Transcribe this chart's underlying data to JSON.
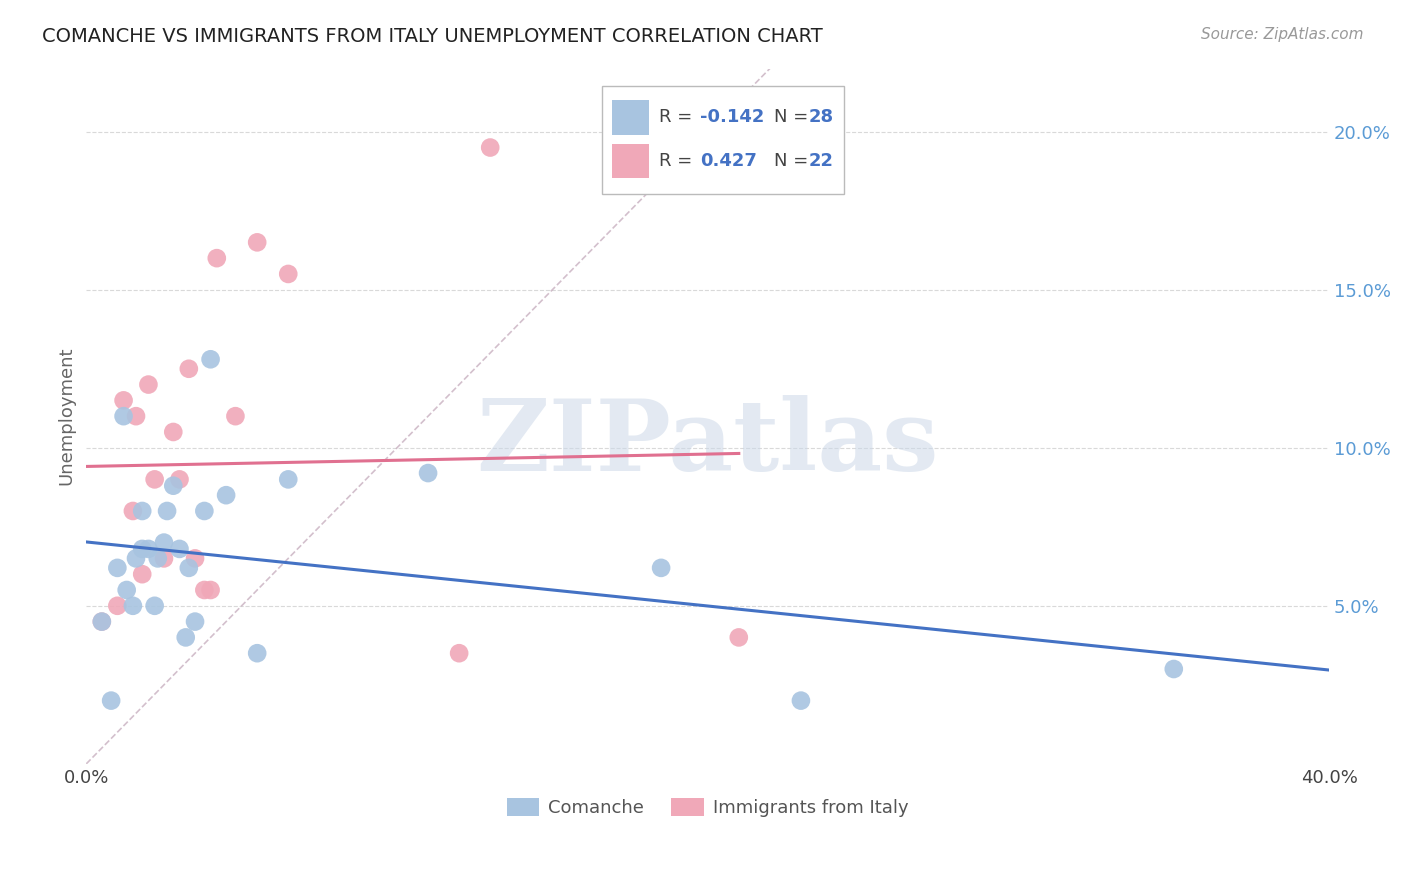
{
  "title": "COMANCHE VS IMMIGRANTS FROM ITALY UNEMPLOYMENT CORRELATION CHART",
  "source": "Source: ZipAtlas.com",
  "ylabel": "Unemployment",
  "y_ticks": [
    0.05,
    0.1,
    0.15,
    0.2
  ],
  "y_tick_labels": [
    "5.0%",
    "10.0%",
    "15.0%",
    "20.0%"
  ],
  "xlim": [
    0.0,
    0.4
  ],
  "ylim": [
    0.0,
    0.22
  ],
  "blue_R": "-0.142",
  "blue_N": "28",
  "pink_R": "0.427",
  "pink_N": "22",
  "blue_color": "#a8c4e0",
  "pink_color": "#f0a8b8",
  "blue_line_color": "#4472c4",
  "pink_line_color": "#e07090",
  "diagonal_color": "#c8b0c0",
  "comanche_x": [
    0.005,
    0.008,
    0.01,
    0.012,
    0.013,
    0.015,
    0.016,
    0.018,
    0.018,
    0.02,
    0.022,
    0.023,
    0.025,
    0.026,
    0.028,
    0.03,
    0.032,
    0.033,
    0.035,
    0.038,
    0.04,
    0.045,
    0.055,
    0.065,
    0.11,
    0.185,
    0.23,
    0.35
  ],
  "comanche_y": [
    0.045,
    0.02,
    0.062,
    0.11,
    0.055,
    0.05,
    0.065,
    0.068,
    0.08,
    0.068,
    0.05,
    0.065,
    0.07,
    0.08,
    0.088,
    0.068,
    0.04,
    0.062,
    0.045,
    0.08,
    0.128,
    0.085,
    0.035,
    0.09,
    0.092,
    0.062,
    0.02,
    0.03
  ],
  "italy_x": [
    0.005,
    0.01,
    0.012,
    0.015,
    0.016,
    0.018,
    0.02,
    0.022,
    0.025,
    0.028,
    0.03,
    0.033,
    0.035,
    0.038,
    0.04,
    0.042,
    0.048,
    0.055,
    0.065,
    0.12,
    0.13,
    0.21
  ],
  "italy_y": [
    0.045,
    0.05,
    0.115,
    0.08,
    0.11,
    0.06,
    0.12,
    0.09,
    0.065,
    0.105,
    0.09,
    0.125,
    0.065,
    0.055,
    0.055,
    0.16,
    0.11,
    0.165,
    0.155,
    0.035,
    0.195,
    0.04
  ]
}
